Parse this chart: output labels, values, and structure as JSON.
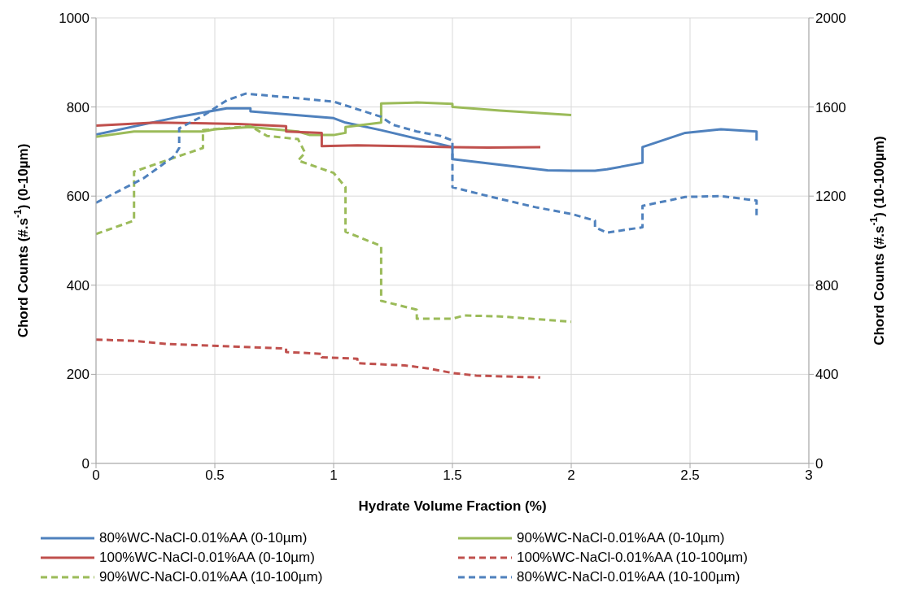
{
  "chart_data": {
    "type": "line",
    "xlabel": "Hydrate Volume Fraction (%)",
    "ylabel": "Chord Counts (#.s$^{-1}$) (0-10µm)",
    "y2label": "Chord Counts (#.s$^{-1}$) (10-100µm)",
    "xlim": [
      0,
      3
    ],
    "xticks": [
      0,
      0.5,
      1,
      1.5,
      2,
      2.5,
      3
    ],
    "ylim": [
      0,
      1000
    ],
    "yticks": [
      0,
      200,
      400,
      600,
      800,
      1000
    ],
    "y2lim": [
      0,
      2000
    ],
    "y2ticks": [
      0,
      400,
      800,
      1200,
      1600,
      2000
    ],
    "grid": true,
    "legend": "bottom",
    "marker": "none",
    "series": [
      {
        "name": "80%WC-NaCl-0.01%AA (0-10µm)",
        "color": "#4f81bd",
        "line_style": "solid",
        "x": [
          0,
          0.35,
          0.55,
          0.65,
          0.65,
          1.0,
          1.05,
          1.2,
          1.5,
          1.5,
          1.9,
          2.0,
          2.1,
          2.15,
          2.3,
          2.3,
          2.48,
          2.63,
          2.78,
          2.78
        ],
        "values": [
          738,
          778,
          797,
          797,
          790,
          775,
          765,
          748,
          710,
          683,
          658,
          657,
          657,
          660,
          675,
          710,
          742,
          750,
          745,
          725
        ]
      },
      {
        "name": "90%WC-NaCl-0.01%AA (0-10µm)",
        "color": "#9bbb59",
        "line_style": "solid",
        "x": [
          0,
          0.16,
          0.45,
          0.5,
          0.65,
          0.85,
          0.9,
          1.0,
          1.05,
          1.05,
          1.2,
          1.2,
          1.35,
          1.5,
          1.5,
          1.7,
          2.0
        ],
        "values": [
          733,
          745,
          745,
          750,
          755,
          745,
          737,
          737,
          742,
          755,
          765,
          808,
          810,
          807,
          800,
          792,
          782
        ]
      },
      {
        "name": "100%WC-NaCl-0.01%AA (0-10µm)",
        "color": "#c0504d",
        "line_style": "solid",
        "x": [
          0,
          0.25,
          0.6,
          0.8,
          0.8,
          0.95,
          0.95,
          1.1,
          1.5,
          1.65,
          1.87
        ],
        "values": [
          758,
          765,
          762,
          757,
          745,
          742,
          712,
          714,
          710,
          709,
          710
        ]
      },
      {
        "name": "100%WC-NaCl-0.01%AA (10-100µm)",
        "color": "#c0504d",
        "line_style": "dashed",
        "axis": "y2",
        "x": [
          0,
          0.16,
          0.3,
          0.6,
          0.8,
          0.8,
          0.95,
          0.95,
          1.1,
          1.1,
          1.3,
          1.4,
          1.5,
          1.6,
          1.87
        ],
        "values": [
          556,
          550,
          536,
          524,
          516,
          500,
          492,
          476,
          470,
          450,
          440,
          426,
          406,
          394,
          386
        ]
      },
      {
        "name": "90%WC-NaCl-0.01%AA (10-100µm)",
        "color": "#9bbb59",
        "line_style": "dashed",
        "axis": "y2",
        "x": [
          0,
          0.16,
          0.16,
          0.35,
          0.45,
          0.45,
          0.65,
          0.72,
          0.85,
          0.88,
          0.85,
          1.0,
          1.05,
          1.05,
          1.2,
          1.2,
          1.35,
          1.35,
          1.5,
          1.55,
          1.7,
          2.0
        ],
        "values": [
          1030,
          1090,
          1310,
          1380,
          1416,
          1496,
          1514,
          1470,
          1456,
          1394,
          1360,
          1304,
          1240,
          1040,
          976,
          730,
          690,
          650,
          650,
          664,
          660,
          636
        ]
      },
      {
        "name": "80%WC-NaCl-0.01%AA (10-100µm)",
        "color": "#4f81bd",
        "line_style": "dashed",
        "axis": "y2",
        "x": [
          0,
          0.2,
          0.33,
          0.35,
          0.35,
          0.45,
          0.55,
          0.63,
          0.8,
          1.0,
          1.2,
          1.25,
          1.35,
          1.45,
          1.5,
          1.5,
          1.65,
          1.85,
          2.0,
          2.1,
          2.1,
          2.15,
          2.3,
          2.3,
          2.48,
          2.63,
          2.78,
          2.78
        ],
        "values": [
          1170,
          1280,
          1380,
          1416,
          1504,
          1560,
          1630,
          1660,
          1644,
          1624,
          1556,
          1520,
          1490,
          1470,
          1450,
          1240,
          1200,
          1150,
          1120,
          1090,
          1060,
          1036,
          1060,
          1156,
          1196,
          1200,
          1180,
          1114
        ]
      }
    ]
  }
}
